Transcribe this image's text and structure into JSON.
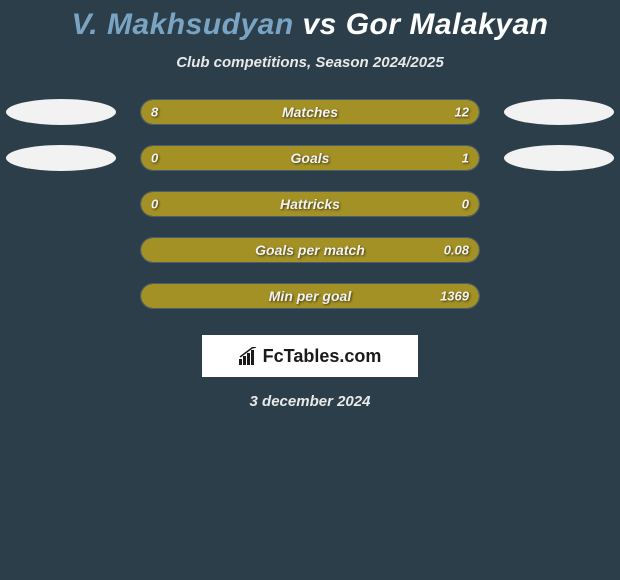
{
  "title": {
    "player1": "V. Makhsudyan",
    "vs": "vs",
    "player2": "Gor Malakyan",
    "player1_color": "#7aa4c4",
    "player2_color": "#ffffff"
  },
  "subtitle": "Club competitions, Season 2024/2025",
  "chart": {
    "track_width": 340,
    "track_border_color": "#4a5e6b",
    "left_color": "#a39125",
    "right_color": "#a39125",
    "background_color": "#2b3e4a",
    "ellipse_color": "#f2f2f2",
    "label_color": "#f2f2f2",
    "rows": [
      {
        "label": "Matches",
        "left_value": "8",
        "right_value": "12",
        "left_pct": 40,
        "right_pct": 60,
        "show_ellipses": true
      },
      {
        "label": "Goals",
        "left_value": "0",
        "right_value": "1",
        "left_pct": 5,
        "right_pct": 95,
        "show_ellipses": true
      },
      {
        "label": "Hattricks",
        "left_value": "0",
        "right_value": "0",
        "left_pct": 100,
        "right_pct": 0,
        "full_left": true,
        "show_ellipses": false
      },
      {
        "label": "Goals per match",
        "left_value": "",
        "right_value": "0.08",
        "left_pct": 0,
        "right_pct": 100,
        "full_right": true,
        "show_ellipses": false
      },
      {
        "label": "Min per goal",
        "left_value": "",
        "right_value": "1369",
        "left_pct": 0,
        "right_pct": 100,
        "full_right": true,
        "show_ellipses": false
      }
    ]
  },
  "logo": {
    "text_prefix": "Fc",
    "text_main": "Tables",
    "text_suffix": ".com"
  },
  "footer_date": "3 december 2024"
}
